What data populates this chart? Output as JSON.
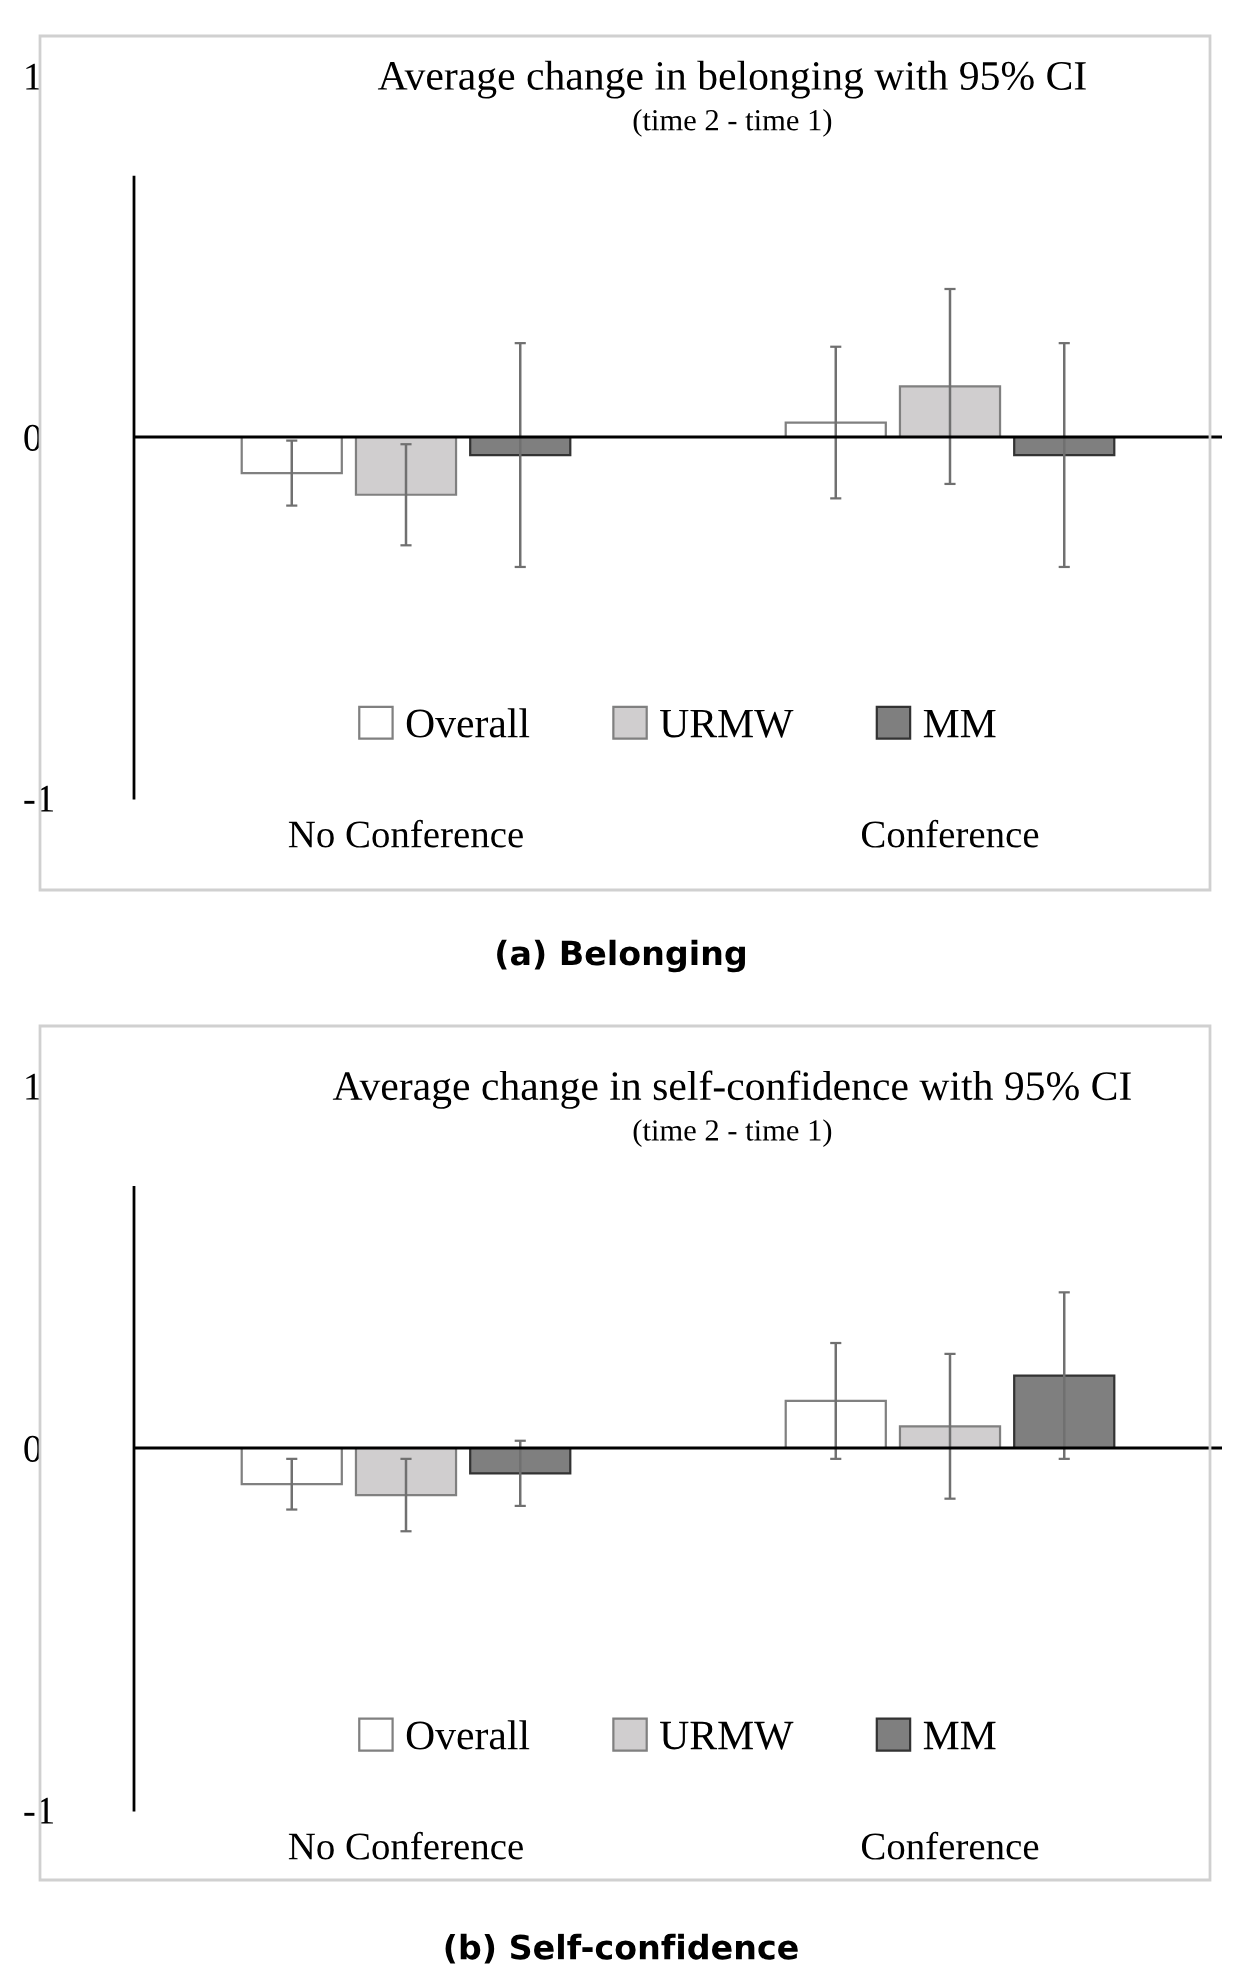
{
  "chart_data": [
    {
      "type": "bar",
      "title": "Average change in belonging with 95% CI",
      "subtitle": "(time 2 - time 1)",
      "categories": [
        "No Conference",
        "Conference"
      ],
      "series": [
        {
          "name": "Overall",
          "color": "#ffffff",
          "values": [
            -0.1,
            0.04
          ],
          "errors": [
            0.09,
            0.21
          ]
        },
        {
          "name": "URMW",
          "color": "#d0cecf",
          "values": [
            -0.16,
            0.14
          ],
          "errors": [
            0.14,
            0.27
          ]
        },
        {
          "name": "MM",
          "color": "#7f7f7f",
          "values": [
            -0.05,
            -0.05
          ],
          "errors": [
            0.31,
            0.31
          ]
        }
      ],
      "ylim": [
        -1,
        1
      ],
      "yticks": [
        -1,
        0,
        1
      ],
      "legend": "bottom",
      "ref_lines": [
        {
          "axis": "y",
          "value": 0
        }
      ],
      "annotations": [
        "(a) Belonging"
      ]
    },
    {
      "type": "bar",
      "title": "Average change in self-confidence with 95% CI",
      "subtitle": "(time 2 - time 1)",
      "categories": [
        "No Conference",
        "Conference"
      ],
      "series": [
        {
          "name": "Overall",
          "color": "#ffffff",
          "values": [
            -0.1,
            0.13
          ],
          "errors": [
            0.07,
            0.16
          ]
        },
        {
          "name": "URMW",
          "color": "#d0cecf",
          "values": [
            -0.13,
            0.06
          ],
          "errors": [
            0.1,
            0.2
          ]
        },
        {
          "name": "MM",
          "color": "#7f7f7f",
          "values": [
            -0.07,
            0.2
          ],
          "errors": [
            0.09,
            0.23
          ]
        }
      ],
      "ylim": [
        -1,
        1
      ],
      "yticks": [
        -1,
        0,
        1
      ],
      "legend": "bottom",
      "ref_lines": [
        {
          "axis": "y",
          "value": 0
        }
      ],
      "annotations": [
        "(b) Self-confidence"
      ]
    }
  ]
}
